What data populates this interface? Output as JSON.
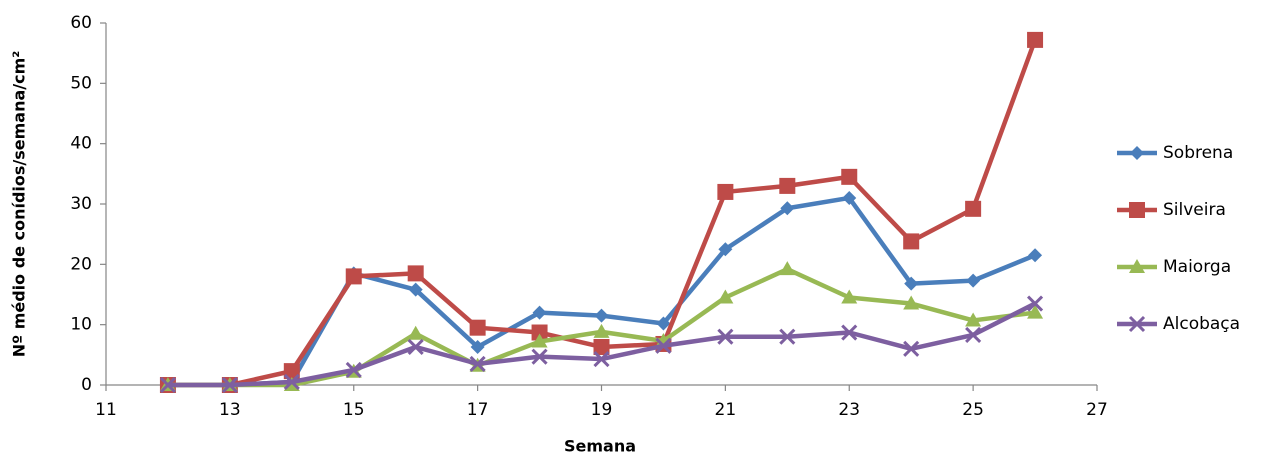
{
  "chart_data": {
    "type": "line",
    "x_label": "Semana",
    "y_label": "Nº médio de conídios/semana/cm²",
    "x": [
      12,
      13,
      14,
      15,
      16,
      17,
      18,
      19,
      20,
      21,
      22,
      23,
      24,
      25,
      26
    ],
    "series": [
      {
        "name": "Sobrena",
        "color": "#4a7ebb",
        "marker": "diamond",
        "values": [
          0,
          0,
          0.5,
          18.5,
          15.8,
          6.3,
          12,
          11.5,
          10.2,
          22.5,
          29.3,
          31,
          16.8,
          17.3,
          21.5
        ]
      },
      {
        "name": "Silveira",
        "color": "#be4b48",
        "marker": "square",
        "values": [
          0,
          0,
          2.3,
          18,
          18.5,
          9.5,
          8.7,
          6.3,
          6.8,
          32,
          33,
          34.5,
          23.8,
          29.2,
          57.2
        ]
      },
      {
        "name": "Maiorga",
        "color": "#98b954",
        "marker": "triangle",
        "values": [
          0,
          0,
          0,
          2.2,
          8.5,
          3.2,
          7.2,
          8.8,
          7.3,
          14.5,
          19.2,
          14.5,
          13.5,
          10.7,
          12
        ]
      },
      {
        "name": "Alcobaça",
        "color": "#7d5fa0",
        "marker": "x",
        "values": [
          0,
          0,
          0.5,
          2.5,
          6.3,
          3.5,
          4.7,
          4.3,
          6.5,
          8,
          8,
          8.7,
          6,
          8.3,
          13.5
        ]
      }
    ],
    "xlim": [
      11,
      27
    ],
    "xticks": [
      11,
      13,
      15,
      17,
      19,
      21,
      23,
      25,
      27
    ],
    "ylim": [
      0,
      60
    ],
    "yticks": [
      0,
      10,
      20,
      30,
      40,
      50,
      60
    ],
    "grid": false,
    "legend": "right"
  }
}
